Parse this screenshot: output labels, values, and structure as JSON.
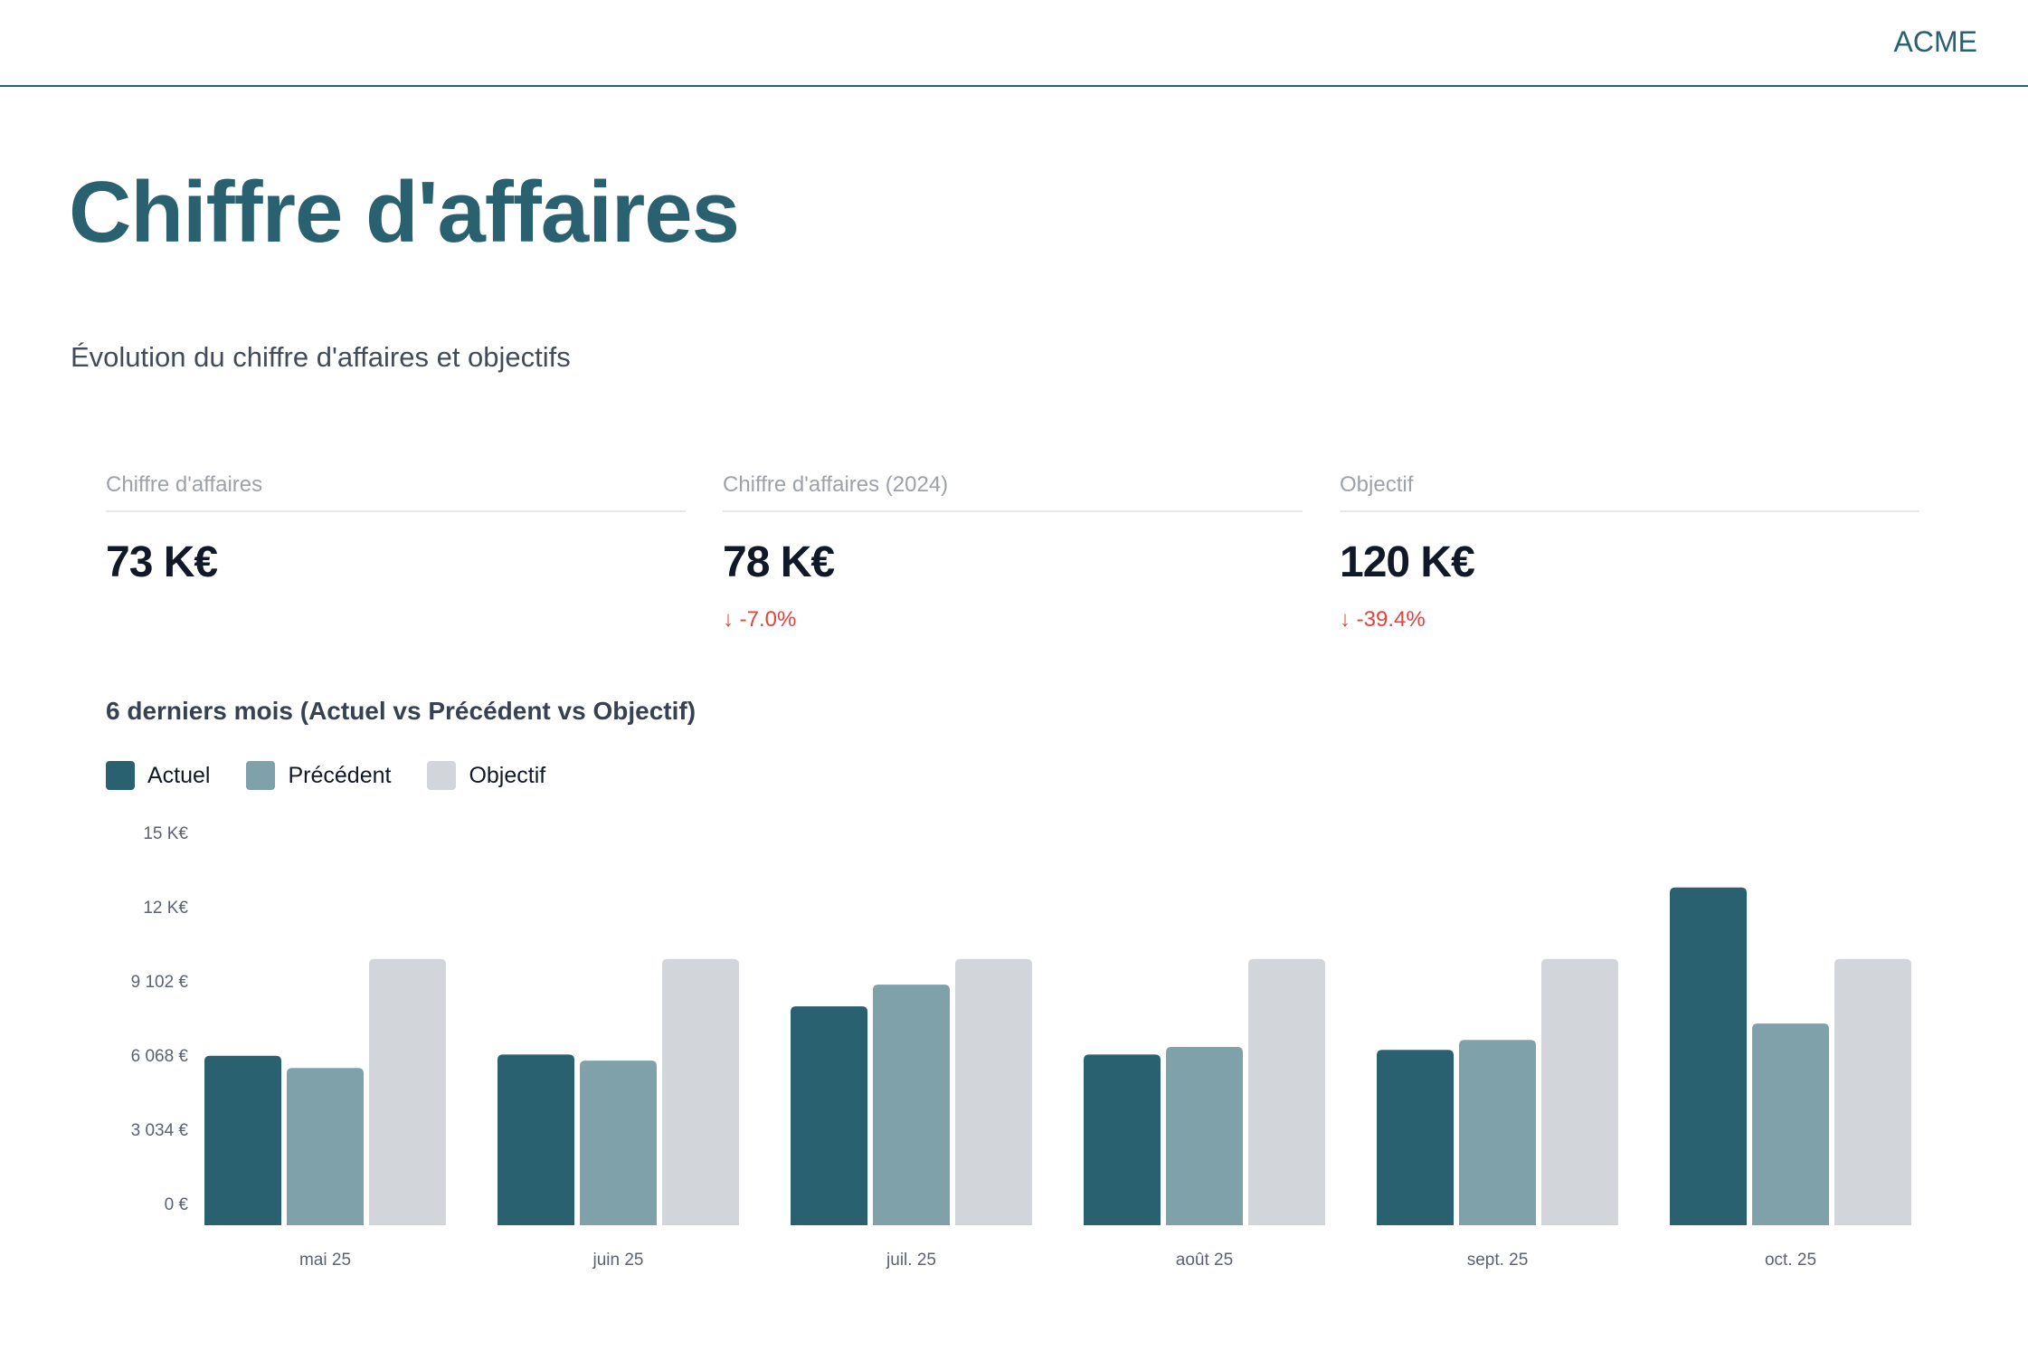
{
  "header": {
    "brand": "ACME"
  },
  "page": {
    "title": "Chiffre d'affaires",
    "subtitle": "Évolution du chiffre d'affaires et objectifs"
  },
  "kpis": [
    {
      "label": "Chiffre d'affaires",
      "value": "73 K€",
      "delta": ""
    },
    {
      "label": "Chiffre d'affaires (2024)",
      "value": "78 K€",
      "delta": "-7.0%",
      "delta_icon": "arrow-down-icon"
    },
    {
      "label": "Objectif",
      "value": "120 K€",
      "delta": "-39.4%",
      "delta_icon": "arrow-down-icon"
    }
  ],
  "colors": {
    "accent": "#2a6170",
    "actuel": "#2a6170",
    "precedent": "#7fa1a9",
    "objectif": "#d2d5da",
    "negative": "#e0443e"
  },
  "chart_data": {
    "type": "bar",
    "title": "6 derniers mois (Actuel vs Précédent vs Objectif)",
    "categories": [
      "mai 25",
      "juin 25",
      "juil. 25",
      "août 25",
      "sept. 25",
      "oct. 25"
    ],
    "series": [
      {
        "name": "Actuel",
        "color": "#2a6170",
        "values": [
          6040,
          6090,
          8060,
          6090,
          6280,
          12920
        ]
      },
      {
        "name": "Précédent",
        "color": "#7fa1a9",
        "values": [
          5540,
          5840,
          8950,
          6400,
          6690,
          7360
        ]
      },
      {
        "name": "Objectif",
        "color": "#d2d5da",
        "values": [
          10000,
          10000,
          10000,
          10000,
          10000,
          10000
        ]
      }
    ],
    "y_ticks": [
      {
        "value": 0,
        "label": "0 €"
      },
      {
        "value": 3034,
        "label": "3 034 €"
      },
      {
        "value": 6068,
        "label": "6 068 €"
      },
      {
        "value": 9102,
        "label": "9 102 €"
      },
      {
        "value": 12136,
        "label": "12 K€"
      },
      {
        "value": 15170,
        "label": "15 K€"
      }
    ],
    "ylim": [
      0,
      15170
    ],
    "grid": false,
    "legend": "top-left"
  }
}
